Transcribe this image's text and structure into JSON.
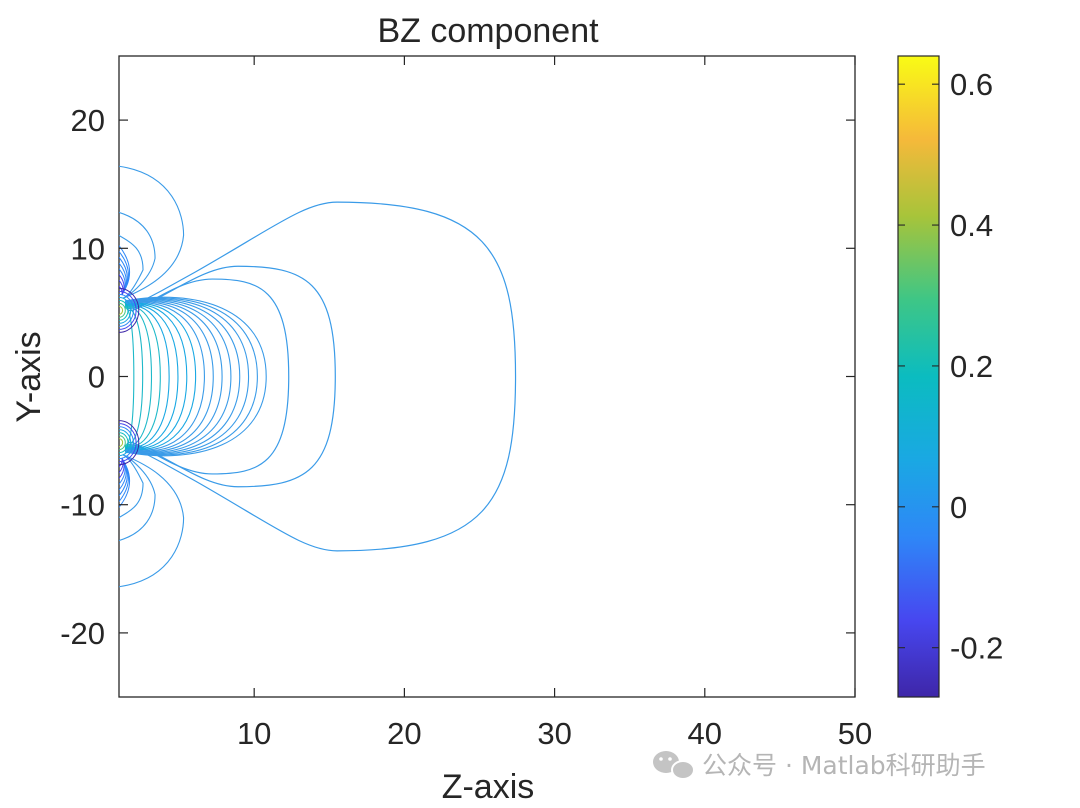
{
  "chart_data": {
    "type": "contour",
    "title": "BZ component",
    "xlabel": "Z-axis",
    "ylabel": "Y-axis",
    "xlim": [
      1,
      50
    ],
    "ylim": [
      -25,
      25
    ],
    "xticks": [
      "10",
      "20",
      "30",
      "40",
      "50"
    ],
    "yticks": [
      "20",
      "10",
      "0",
      "-10",
      "-20"
    ],
    "xtick_values": [
      10,
      20,
      30,
      40,
      50
    ],
    "ytick_values": [
      20,
      10,
      0,
      -10,
      -20
    ],
    "colorbar": {
      "ticks": [
        "0.6",
        "0.4",
        "0.2",
        "0",
        "-0.2"
      ],
      "tick_values": [
        0.6,
        0.4,
        0.2,
        0,
        -0.2
      ],
      "range": [
        -0.27,
        0.64
      ],
      "colormap": "parula"
    },
    "contour_color": "#3a9be8",
    "outer_loops": [
      {
        "z_max": 27.4,
        "y_top": 13.6,
        "y_bottom": -13.6
      },
      {
        "z_max": 15.4,
        "y_top": 8.6,
        "y_bottom": -8.6
      },
      {
        "z_max": 12.3,
        "y_top": 7.6,
        "y_bottom": -7.6
      }
    ],
    "outer_lobes": [
      {
        "z_max": 5.3,
        "y_edge": 16.4
      },
      {
        "z_max": 3.4,
        "y_edge": 12.8
      },
      {
        "z_max": 2.6,
        "y_edge": 11.0
      }
    ],
    "dipole_centers_y": [
      5.0,
      -5.0
    ]
  },
  "watermark": {
    "icon": "wechat-icon",
    "text": "公众号 · Matlab科研助手"
  }
}
